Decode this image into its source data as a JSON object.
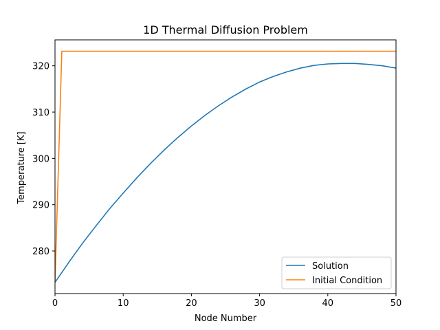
{
  "chart_data": {
    "type": "line",
    "title": "1D Thermal Diffusion Problem",
    "xlabel": "Node Number",
    "ylabel": "Temperature [K]",
    "xlim": [
      0,
      50
    ],
    "ylim": [
      270.8,
      325.6
    ],
    "xticks": [
      0,
      10,
      20,
      30,
      40,
      50
    ],
    "yticks": [
      280,
      290,
      300,
      310,
      320
    ],
    "grid": false,
    "legend_position": "bottom-right",
    "series": [
      {
        "name": "Solution",
        "color": "#1f77b4",
        "x": [
          0,
          2,
          4,
          6,
          8,
          10,
          12,
          14,
          16,
          18,
          20,
          22,
          24,
          26,
          28,
          30,
          32,
          34,
          36,
          38,
          40,
          42,
          44,
          46,
          48,
          50
        ],
        "y": [
          273.2,
          277.5,
          281.6,
          285.4,
          289.1,
          292.5,
          295.8,
          298.9,
          301.8,
          304.5,
          307.0,
          309.3,
          311.4,
          313.3,
          315.0,
          316.5,
          317.7,
          318.7,
          319.5,
          320.1,
          320.4,
          320.5,
          320.5,
          320.3,
          320.0,
          319.5
        ]
      },
      {
        "name": "Initial Condition",
        "color": "#ff7f0e",
        "x": [
          0,
          1,
          50
        ],
        "y": [
          273.2,
          323.15,
          323.15
        ]
      }
    ]
  }
}
